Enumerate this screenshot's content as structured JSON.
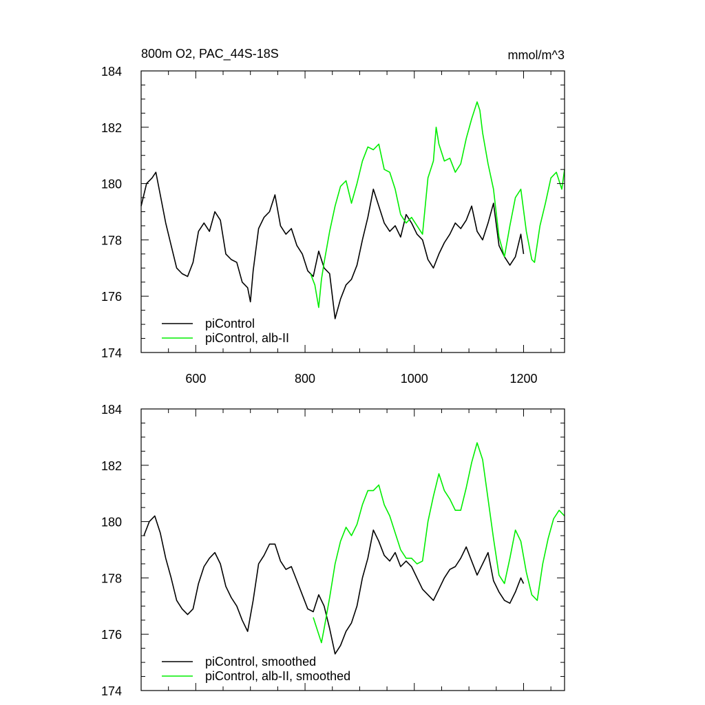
{
  "chart_data": [
    {
      "type": "line",
      "title": "800m O2, PAC_44S-18S",
      "units": "mmol/m^3",
      "xlim": [
        500,
        1275
      ],
      "ylim": [
        174,
        184
      ],
      "xticks": [
        600,
        800,
        1000,
        1200
      ],
      "xtick_labels": [
        "600",
        "800",
        "1000",
        "1200"
      ],
      "yticks": [
        174,
        176,
        178,
        180,
        182,
        184
      ],
      "ytick_labels": [
        "174",
        "176",
        "178",
        "180",
        "182",
        "184"
      ],
      "legend_position": "bottom-left",
      "series": [
        {
          "name": "piControl",
          "color": "#000000",
          "x": [
            500,
            510,
            520,
            527,
            535,
            545,
            555,
            565,
            575,
            585,
            595,
            605,
            615,
            625,
            635,
            645,
            655,
            665,
            675,
            685,
            695,
            700,
            705,
            715,
            725,
            735,
            745,
            755,
            765,
            775,
            785,
            795,
            805,
            815,
            825,
            835,
            845,
            855,
            865,
            875,
            885,
            895,
            905,
            915,
            925,
            935,
            945,
            955,
            965,
            975,
            985,
            995,
            1005,
            1015,
            1025,
            1035,
            1045,
            1055,
            1065,
            1075,
            1085,
            1095,
            1105,
            1115,
            1125,
            1135,
            1145,
            1155,
            1165,
            1175,
            1185,
            1195,
            1200
          ],
          "values": [
            179.2,
            180.0,
            180.2,
            180.4,
            179.6,
            178.6,
            177.8,
            177.0,
            176.8,
            176.7,
            177.2,
            178.3,
            178.6,
            178.3,
            179.0,
            178.7,
            177.5,
            177.3,
            177.2,
            176.5,
            176.3,
            175.8,
            176.9,
            178.4,
            178.8,
            179.0,
            179.6,
            178.5,
            178.2,
            178.4,
            177.8,
            177.5,
            176.9,
            176.7,
            177.6,
            177.0,
            176.8,
            175.2,
            175.9,
            176.4,
            176.6,
            177.1,
            178.0,
            178.8,
            179.8,
            179.2,
            178.6,
            178.3,
            178.5,
            178.1,
            178.9,
            178.6,
            178.2,
            178.0,
            177.3,
            177.0,
            177.5,
            177.9,
            178.2,
            178.6,
            178.4,
            178.7,
            179.2,
            178.3,
            178.0,
            178.6,
            179.3,
            177.8,
            177.4,
            177.1,
            177.4,
            178.2,
            177.5
          ]
        },
        {
          "name": "piControl, alb-II",
          "color": "#00ee00",
          "x": [
            810,
            818,
            825,
            830,
            835,
            845,
            855,
            865,
            875,
            885,
            895,
            905,
            915,
            925,
            935,
            945,
            955,
            965,
            975,
            985,
            995,
            1005,
            1015,
            1025,
            1035,
            1040,
            1045,
            1055,
            1065,
            1075,
            1085,
            1095,
            1105,
            1115,
            1120,
            1125,
            1135,
            1145,
            1155,
            1165,
            1175,
            1185,
            1195,
            1205,
            1215,
            1220,
            1230,
            1240,
            1250,
            1260,
            1270,
            1275
          ],
          "values": [
            176.8,
            176.4,
            175.6,
            176.6,
            177.2,
            178.3,
            179.2,
            179.9,
            180.1,
            179.3,
            180.0,
            180.8,
            181.3,
            181.2,
            181.4,
            180.5,
            180.4,
            179.8,
            178.9,
            178.6,
            178.8,
            178.5,
            178.2,
            180.2,
            180.8,
            182.0,
            181.4,
            180.8,
            180.9,
            180.4,
            180.7,
            181.6,
            182.3,
            182.9,
            182.6,
            181.8,
            180.7,
            179.8,
            178.1,
            177.4,
            178.5,
            179.5,
            179.8,
            178.3,
            177.3,
            177.2,
            178.5,
            179.3,
            180.2,
            180.4,
            179.8,
            180.5
          ]
        }
      ]
    },
    {
      "type": "line",
      "title": "",
      "xlim": [
        500,
        1275
      ],
      "ylim": [
        174,
        184
      ],
      "xticks": [
        600,
        800,
        1000,
        1200
      ],
      "yticks": [
        174,
        176,
        178,
        180,
        182,
        184
      ],
      "ytick_labels": [
        "174",
        "176",
        "178",
        "180",
        "182",
        "184"
      ],
      "legend_position": "bottom-left",
      "series": [
        {
          "name": "piControl, smoothed",
          "color": "#000000",
          "x": [
            505,
            515,
            525,
            535,
            545,
            555,
            565,
            575,
            585,
            595,
            605,
            615,
            625,
            635,
            645,
            655,
            665,
            675,
            685,
            695,
            705,
            715,
            725,
            735,
            745,
            755,
            765,
            775,
            785,
            795,
            805,
            815,
            825,
            835,
            845,
            855,
            865,
            875,
            885,
            895,
            905,
            915,
            925,
            935,
            945,
            955,
            965,
            975,
            985,
            995,
            1005,
            1015,
            1025,
            1035,
            1045,
            1055,
            1065,
            1075,
            1085,
            1095,
            1105,
            1115,
            1125,
            1135,
            1145,
            1155,
            1165,
            1175,
            1185,
            1195,
            1200
          ],
          "values": [
            179.5,
            180.0,
            180.2,
            179.6,
            178.7,
            178.0,
            177.2,
            176.9,
            176.7,
            176.9,
            177.8,
            178.4,
            178.7,
            178.9,
            178.5,
            177.7,
            177.3,
            177.0,
            176.5,
            176.1,
            177.2,
            178.5,
            178.8,
            179.2,
            179.2,
            178.6,
            178.3,
            178.4,
            177.9,
            177.4,
            176.9,
            176.8,
            177.4,
            177.0,
            176.2,
            175.3,
            175.6,
            176.1,
            176.4,
            177.0,
            178.0,
            178.7,
            179.7,
            179.3,
            178.8,
            178.6,
            178.9,
            178.4,
            178.6,
            178.4,
            178.0,
            177.6,
            177.4,
            177.2,
            177.6,
            178.0,
            178.3,
            178.4,
            178.7,
            179.1,
            178.6,
            178.1,
            178.5,
            178.9,
            177.9,
            177.5,
            177.2,
            177.1,
            177.5,
            178.0,
            177.8
          ]
        },
        {
          "name": "piControl, alb-II, smoothed",
          "color": "#00ee00",
          "x": [
            815,
            825,
            830,
            835,
            845,
            855,
            865,
            875,
            885,
            895,
            905,
            915,
            925,
            935,
            945,
            955,
            965,
            975,
            985,
            995,
            1005,
            1015,
            1025,
            1035,
            1045,
            1055,
            1065,
            1075,
            1085,
            1095,
            1105,
            1115,
            1125,
            1135,
            1145,
            1155,
            1165,
            1175,
            1185,
            1195,
            1205,
            1215,
            1225,
            1235,
            1245,
            1255,
            1265,
            1275
          ],
          "values": [
            176.6,
            176.0,
            175.7,
            176.2,
            177.3,
            178.5,
            179.3,
            179.8,
            179.5,
            179.9,
            180.6,
            181.1,
            181.1,
            181.3,
            180.6,
            180.2,
            179.6,
            179.0,
            178.7,
            178.7,
            178.5,
            178.6,
            180.0,
            180.9,
            181.7,
            181.1,
            180.8,
            180.4,
            180.4,
            181.2,
            182.1,
            182.8,
            182.2,
            180.8,
            179.4,
            178.1,
            177.8,
            178.7,
            179.7,
            179.3,
            178.2,
            177.4,
            177.2,
            178.5,
            179.4,
            180.1,
            180.4,
            180.2
          ]
        }
      ]
    }
  ]
}
